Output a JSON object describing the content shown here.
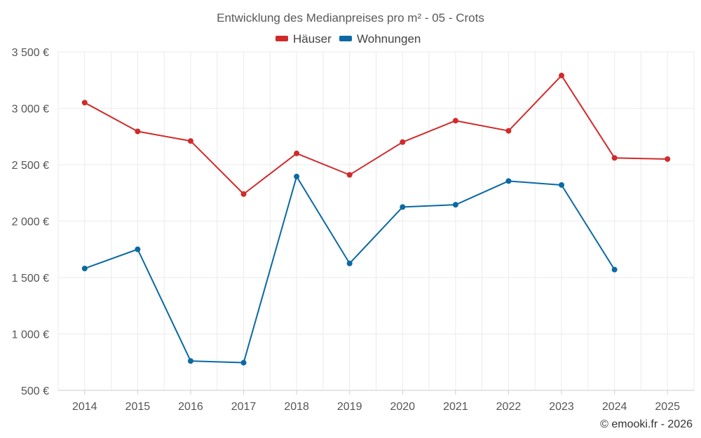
{
  "chart_data": {
    "type": "line",
    "title": "Entwicklung des Medianpreises pro m² - 05 - Crots",
    "categories": [
      "2014",
      "2015",
      "2016",
      "2017",
      "2018",
      "2019",
      "2020",
      "2021",
      "2022",
      "2023",
      "2024",
      "2025"
    ],
    "series": [
      {
        "name": "Häuser",
        "color": "#d12a2a",
        "values": [
          3050,
          2795,
          2710,
          2240,
          2600,
          2410,
          2700,
          2890,
          2800,
          3290,
          2560,
          2550
        ]
      },
      {
        "name": "Wohnungen",
        "color": "#0b69a3",
        "values": [
          1580,
          1750,
          760,
          745,
          2395,
          1625,
          2125,
          2145,
          2355,
          2320,
          1570,
          null
        ]
      }
    ],
    "y_ticks": [
      500,
      1000,
      1500,
      2000,
      2500,
      3000,
      3500
    ],
    "y_tick_labels": [
      "500 €",
      "1 000 €",
      "1 500 €",
      "2 000 €",
      "2 500 €",
      "3 000 €",
      "3 500 €"
    ],
    "ylim": [
      500,
      3500
    ],
    "xlabel": "",
    "ylabel": "",
    "legend_position": "top-center",
    "grid": true
  },
  "credit": "© emooki.fr - 2026"
}
